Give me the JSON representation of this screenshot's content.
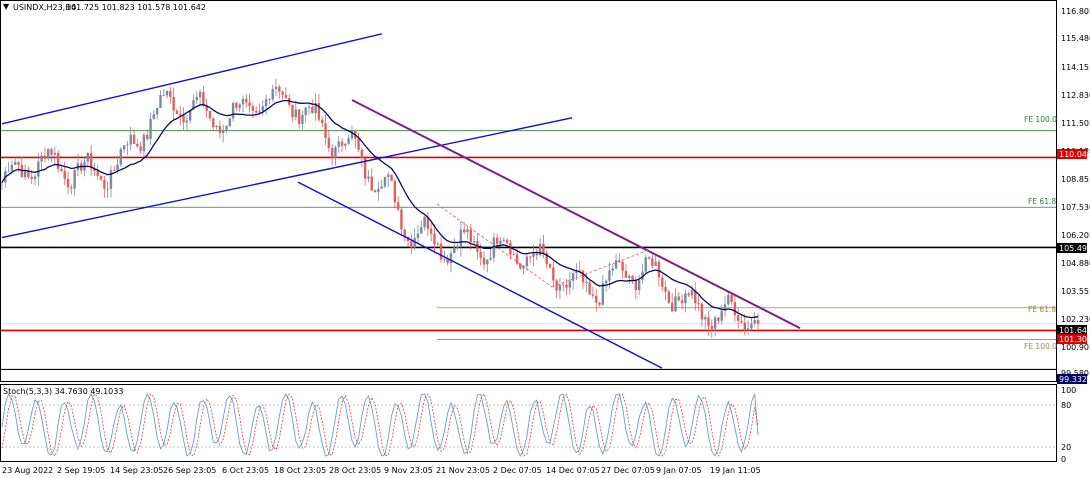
{
  "header": {
    "symbol_timeframe": "USINDX,H23,H4",
    "ohlc": "101.725 101.823 101.578 101.642"
  },
  "colors": {
    "candle_up": "#7a8aa0",
    "candle_down": "#e06060",
    "ma": "#0a0a5a",
    "channel": "#1010d0",
    "trend": "#7a1f8a",
    "red_level": "#e00000",
    "black_level": "#000000",
    "fe_green": "#2e7d32",
    "fe_olive": "#a08c3c",
    "stoch_main": "#6aa0c0",
    "stoch_signal": "#d04040"
  },
  "price_axis": {
    "ticks": [
      "116.805",
      "115.480",
      "114.155",
      "112.830",
      "111.505",
      "110.180",
      "108.855",
      "107.530",
      "106.205",
      "104.880",
      "103.555",
      "102.230",
      "100.905",
      "99.580"
    ]
  },
  "price_tags": {
    "red_high": "110.049",
    "black": "105.497",
    "current": "101.642",
    "red_low": "101.303",
    "bottom": "99.332"
  },
  "fe_labels": {
    "fe100_top": "FE 100.0",
    "fe618_top": "FE 61.8",
    "fe618_bottom": "FE 61.8",
    "fe100_bottom": "FE 100.0"
  },
  "stoch": {
    "title": "Stoch(5,3,3) 34.7630 49.1033",
    "ticks": [
      "100",
      "80",
      "20",
      "0"
    ]
  },
  "time_axis": {
    "labels": [
      "23 Aug 2022",
      "2 Sep 19:05",
      "14 Sep 23:05",
      "26 Sep 23:05",
      "6 Oct 23:05",
      "18 Oct 23:05",
      "28 Oct 23:05",
      "9 Nov 23:05",
      "21 Nov 23:05",
      "2 Dec 07:05",
      "14 Dec 07:05",
      "27 Dec 07:05",
      "9 Jan 07:05",
      "19 Jan 11:05"
    ]
  },
  "chart_data": {
    "type": "candlestick",
    "symbol": "USINDX",
    "timeframe": "H4",
    "ylim": [
      98.9,
      117.4
    ],
    "y_ticks": [
      116.805,
      115.48,
      114.155,
      112.83,
      111.505,
      110.18,
      108.855,
      107.53,
      106.205,
      104.88,
      103.555,
      102.23,
      100.905,
      99.58
    ],
    "close_path": [
      {
        "x": "23 Aug 2022",
        "y": 108.8
      },
      {
        "x": "2 Sep 19:05",
        "y": 109.6
      },
      {
        "x": "14 Sep 23:05",
        "y": 109.8
      },
      {
        "x": "26 Sep 23:05",
        "y": 112.8
      },
      {
        "x": "6 Oct 23:05",
        "y": 112.4
      },
      {
        "x": "18 Oct 23:05",
        "y": 112.6
      },
      {
        "x": "28 Oct 23:05",
        "y": 111.0
      },
      {
        "x": "9 Nov 23:05",
        "y": 106.0
      },
      {
        "x": "21 Nov 23:05",
        "y": 106.1
      },
      {
        "x": "2 Dec 07:05",
        "y": 104.6
      },
      {
        "x": "14 Dec 07:05",
        "y": 103.8
      },
      {
        "x": "27 Dec 07:05",
        "y": 103.9
      },
      {
        "x": "9 Jan 07:05",
        "y": 102.8
      },
      {
        "x": "19 Jan 11:05",
        "y": 101.642
      }
    ],
    "horizontal_levels": [
      {
        "name": "FE 100.0",
        "value": 111.4
      },
      {
        "name": "red resistance",
        "value": 110.049
      },
      {
        "name": "FE 61.8",
        "value": 107.53
      },
      {
        "name": "black support",
        "value": 105.497
      },
      {
        "name": "FE 61.8",
        "value": 102.45
      },
      {
        "name": "red support",
        "value": 101.303
      },
      {
        "name": "FE 100.0",
        "value": 100.85
      }
    ],
    "stochastic": {
      "period": "5,3,3",
      "main": 34.763,
      "signal": 49.1033,
      "levels": [
        80,
        20
      ],
      "range": [
        0,
        100
      ]
    }
  }
}
